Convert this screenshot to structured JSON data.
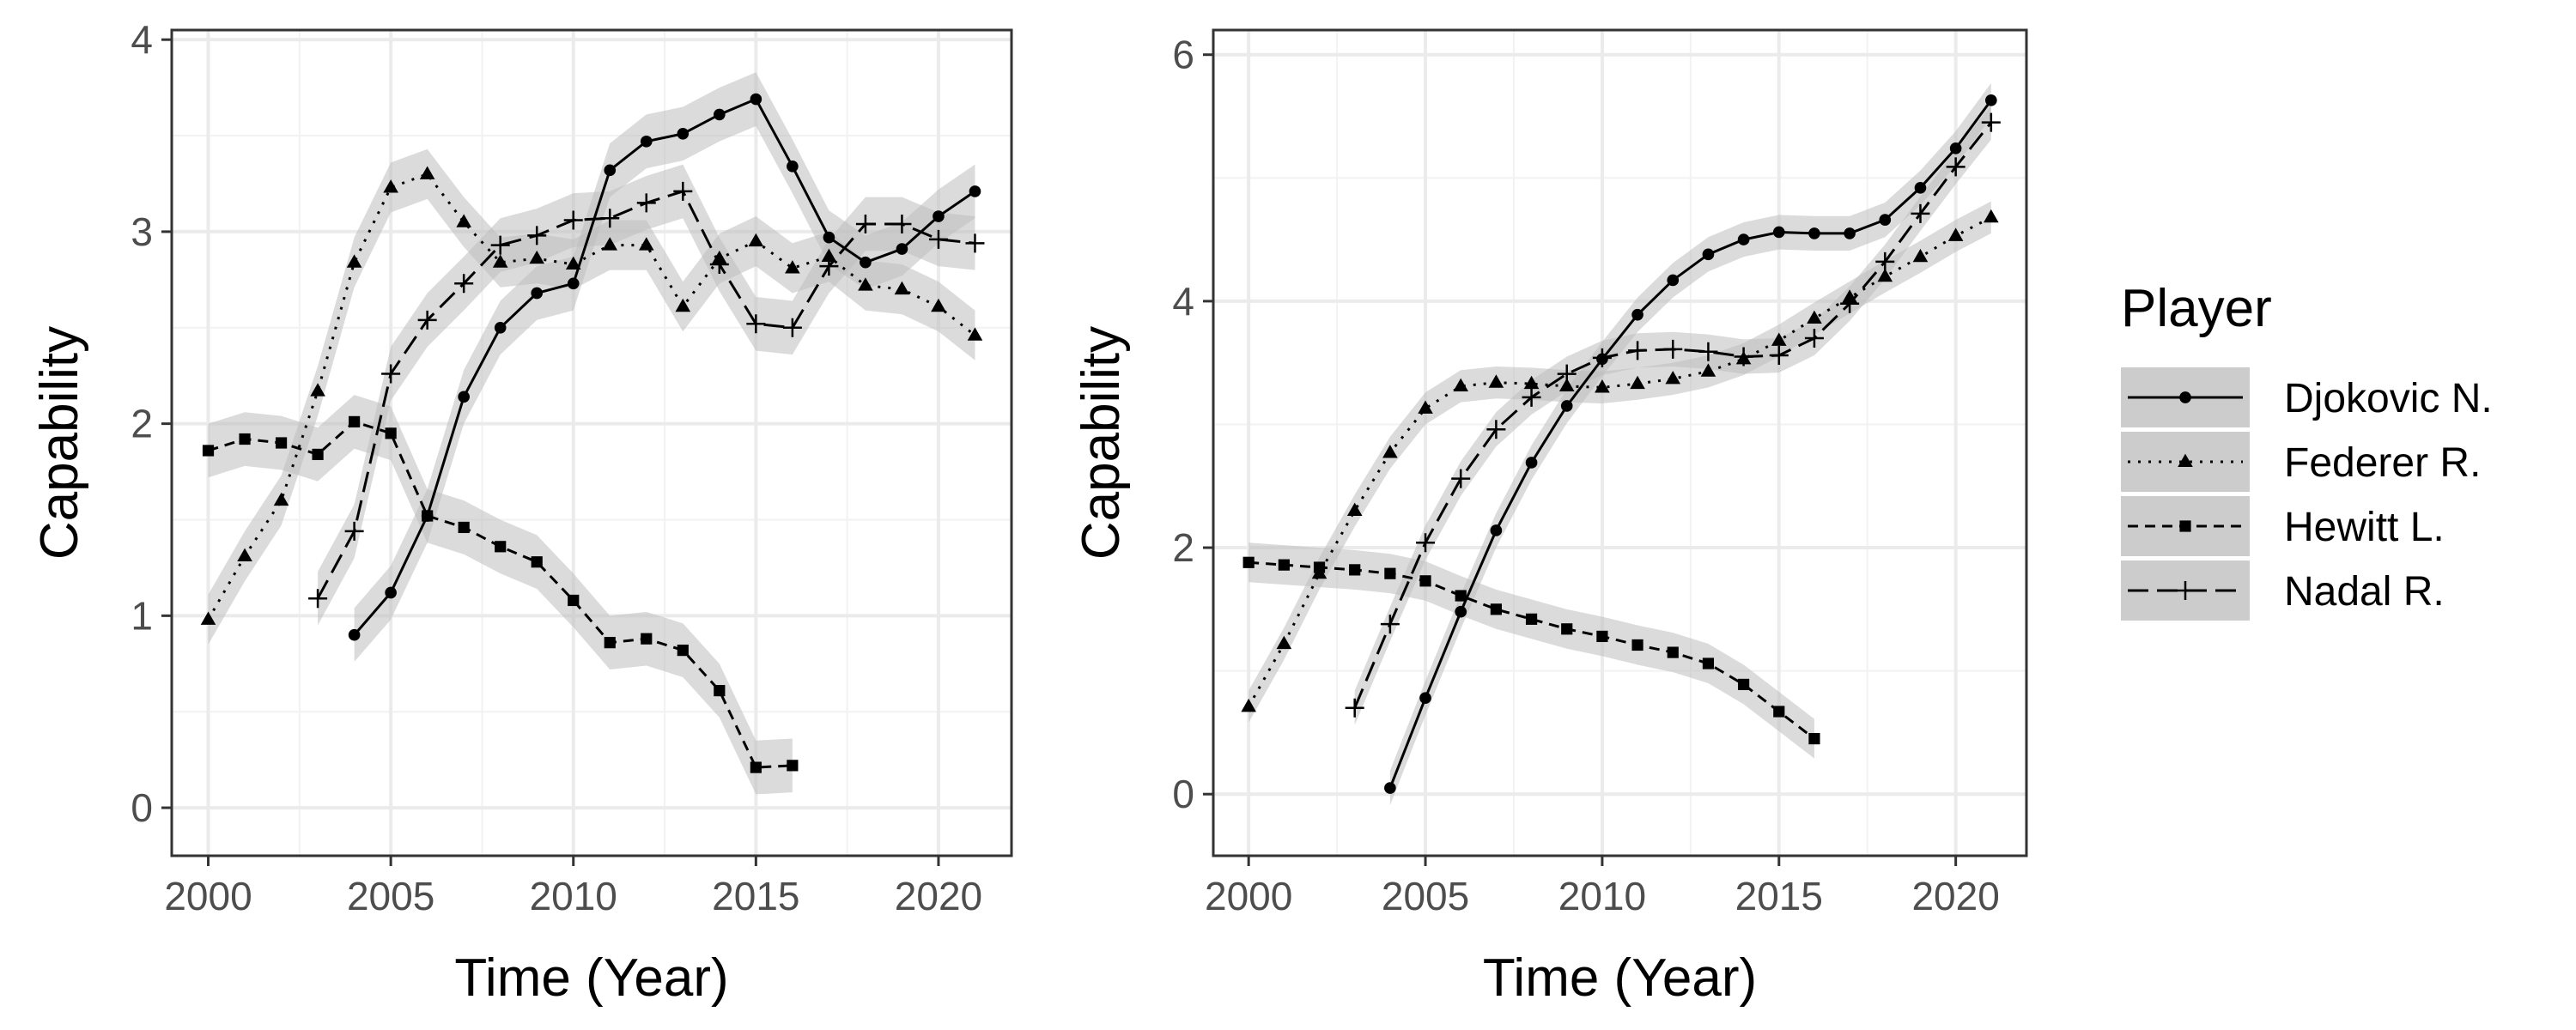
{
  "chart_data": [
    {
      "type": "line",
      "xlabel": "Time (Year)",
      "ylabel": "Capability",
      "xlim": [
        1999,
        2022
      ],
      "ylim": [
        -0.25,
        4.05
      ],
      "xticks": [
        2000,
        2005,
        2010,
        2015,
        2020
      ],
      "yticks": [
        0,
        1,
        2,
        3,
        4
      ],
      "grid": true,
      "band_color": "#bebebe",
      "series": [
        {
          "name": "Djokovic N.",
          "marker": "circle",
          "dash": "solid",
          "x": [
            2004,
            2005,
            2006,
            2007,
            2008,
            2009,
            2010,
            2011,
            2012,
            2013,
            2014,
            2015,
            2016,
            2017,
            2018,
            2019,
            2020,
            2021
          ],
          "y": [
            0.9,
            1.12,
            1.52,
            2.14,
            2.5,
            2.68,
            2.73,
            3.32,
            3.47,
            3.51,
            3.61,
            3.69,
            3.34,
            2.97,
            2.84,
            2.91,
            3.08,
            3.21
          ],
          "band": 0.14
        },
        {
          "name": "Federer R.",
          "marker": "triangle",
          "dash": "dotted",
          "x": [
            2000,
            2001,
            2002,
            2003,
            2004,
            2005,
            2006,
            2007,
            2008,
            2009,
            2010,
            2011,
            2012,
            2013,
            2014,
            2015,
            2016,
            2017,
            2018,
            2019,
            2020,
            2021
          ],
          "y": [
            0.98,
            1.31,
            1.6,
            2.17,
            2.84,
            3.23,
            3.3,
            3.05,
            2.84,
            2.86,
            2.83,
            2.93,
            2.93,
            2.61,
            2.86,
            2.95,
            2.81,
            2.87,
            2.72,
            2.7,
            2.61,
            2.46
          ],
          "band": 0.13
        },
        {
          "name": "Hewitt L.",
          "marker": "square",
          "dash": "dashed",
          "x": [
            2000,
            2001,
            2002,
            2003,
            2004,
            2005,
            2006,
            2007,
            2008,
            2009,
            2010,
            2011,
            2012,
            2013,
            2014,
            2015,
            2016
          ],
          "y": [
            1.86,
            1.92,
            1.9,
            1.84,
            2.01,
            1.95,
            1.52,
            1.46,
            1.36,
            1.28,
            1.08,
            0.86,
            0.88,
            0.82,
            0.61,
            0.21,
            0.22
          ],
          "band": 0.14
        },
        {
          "name": "Nadal R.",
          "marker": "plus",
          "dash": "longdash",
          "x": [
            2003,
            2004,
            2005,
            2006,
            2007,
            2008,
            2009,
            2010,
            2011,
            2012,
            2013,
            2014,
            2015,
            2016,
            2017,
            2018,
            2019,
            2020,
            2021
          ],
          "y": [
            1.09,
            1.44,
            2.26,
            2.54,
            2.73,
            2.93,
            2.98,
            3.06,
            3.07,
            3.15,
            3.21,
            2.83,
            2.52,
            2.5,
            2.82,
            3.04,
            3.04,
            2.96,
            2.94
          ],
          "band": 0.14
        }
      ]
    },
    {
      "type": "line",
      "xlabel": "Time (Year)",
      "ylabel": "Capability",
      "xlim": [
        1999,
        2022
      ],
      "ylim": [
        -0.5,
        6.2
      ],
      "xticks": [
        2000,
        2005,
        2010,
        2015,
        2020
      ],
      "yticks": [
        0,
        2,
        4,
        6
      ],
      "grid": true,
      "band_color": "#bebebe",
      "series": [
        {
          "name": "Djokovic N.",
          "marker": "circle",
          "dash": "solid",
          "x": [
            2004,
            2005,
            2006,
            2007,
            2008,
            2009,
            2010,
            2011,
            2012,
            2013,
            2014,
            2015,
            2016,
            2017,
            2018,
            2019,
            2020,
            2021
          ],
          "y": [
            0.05,
            0.78,
            1.48,
            2.14,
            2.69,
            3.15,
            3.53,
            3.89,
            4.17,
            4.38,
            4.5,
            4.56,
            4.55,
            4.55,
            4.66,
            4.92,
            5.24,
            5.63
          ],
          "band": 0.14
        },
        {
          "name": "Federer R.",
          "marker": "triangle",
          "dash": "dotted",
          "x": [
            2000,
            2001,
            2002,
            2003,
            2004,
            2005,
            2006,
            2007,
            2008,
            2009,
            2010,
            2011,
            2012,
            2013,
            2014,
            2015,
            2016,
            2017,
            2018,
            2019,
            2020,
            2021
          ],
          "y": [
            0.71,
            1.22,
            1.79,
            2.3,
            2.77,
            3.13,
            3.31,
            3.34,
            3.33,
            3.31,
            3.3,
            3.33,
            3.37,
            3.43,
            3.53,
            3.68,
            3.86,
            4.03,
            4.2,
            4.36,
            4.53,
            4.68
          ],
          "band": 0.13
        },
        {
          "name": "Hewitt L.",
          "marker": "square",
          "dash": "dashed",
          "x": [
            2000,
            2001,
            2002,
            2003,
            2004,
            2005,
            2006,
            2007,
            2008,
            2009,
            2010,
            2011,
            2012,
            2013,
            2014,
            2015,
            2016
          ],
          "y": [
            1.88,
            1.86,
            1.84,
            1.82,
            1.79,
            1.73,
            1.61,
            1.5,
            1.42,
            1.34,
            1.28,
            1.21,
            1.15,
            1.06,
            0.89,
            0.67,
            0.45
          ],
          "band": 0.16
        },
        {
          "name": "Nadal R.",
          "marker": "plus",
          "dash": "longdash",
          "x": [
            2003,
            2004,
            2005,
            2006,
            2007,
            2008,
            2009,
            2010,
            2011,
            2012,
            2013,
            2014,
            2015,
            2016,
            2017,
            2018,
            2019,
            2020,
            2021
          ],
          "y": [
            0.7,
            1.38,
            2.04,
            2.56,
            2.96,
            3.22,
            3.41,
            3.54,
            3.6,
            3.61,
            3.59,
            3.55,
            3.56,
            3.7,
            3.98,
            4.32,
            4.71,
            5.09,
            5.45
          ],
          "band": 0.14
        }
      ]
    }
  ],
  "legend": {
    "title": "Player",
    "placement": "right",
    "entries": [
      "Djokovic N.",
      "Federer R.",
      "Hewitt L.",
      "Nadal R."
    ]
  }
}
